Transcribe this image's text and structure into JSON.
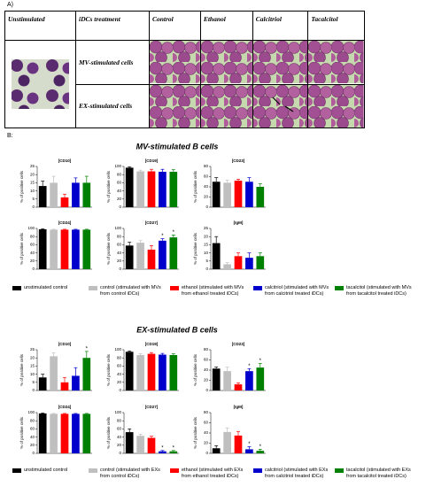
{
  "panel_a": {
    "label": "A)",
    "header": [
      "Unstimulated",
      "iDCs treatment",
      "Control",
      "Ethanol",
      "Calcitriol",
      "Tacalcitol"
    ],
    "rows": [
      "MV-stimulated cells",
      "EX-stimulated cells"
    ]
  },
  "panel_b_label": "B:",
  "sections": [
    {
      "title": "MV-stimulated B cells",
      "legend": [
        {
          "label": "unstimulated control",
          "color": "#000000"
        },
        {
          "label": "control (stimulated with MVs from control iDCs)",
          "color": "#bfbfbf"
        },
        {
          "label": "ethanol (stimulated with MVs from ethanol treated iDCs)",
          "color": "#ff0000"
        },
        {
          "label": "calcitriol (stimulated with MVs from calcitriol treated iDCs)",
          "color": "#0000cc"
        },
        {
          "label": "tacalcitol (stimulated with MVs from tacalcitol treated iDCs)",
          "color": "#008000"
        }
      ]
    },
    {
      "title": "EX-stimulated B cells",
      "legend": [
        {
          "label": "unstimulated control",
          "color": "#000000"
        },
        {
          "label": "control (stimulated with EXs from control iDCs)",
          "color": "#bfbfbf"
        },
        {
          "label": "ethanol (stimulated with EXs from ethanol treated iDCs)",
          "color": "#ff0000"
        },
        {
          "label": "calcitriol (stimulated with EXs from calcitriol treated iDCs)",
          "color": "#0000cc"
        },
        {
          "label": "tacalcitol (stimulated with EXs from tacalcitol treated iDCs)",
          "color": "#008000"
        }
      ]
    }
  ],
  "chart_data": [
    {
      "type": "bar",
      "title": "[CD10]",
      "ylabel": "% of positive cells",
      "values": [
        13,
        15,
        6,
        15,
        15
      ],
      "errors": [
        3,
        4,
        2,
        3,
        4
      ],
      "colors": [
        "#000000",
        "#bfbfbf",
        "#ff0000",
        "#0000cc",
        "#008000"
      ],
      "annotations": [
        null,
        null,
        null,
        null,
        null
      ],
      "ylim": [
        0,
        25
      ],
      "yticks": [
        0,
        5,
        10,
        15,
        20,
        25
      ]
    },
    {
      "type": "bar",
      "title": "[CD19]",
      "ylabel": "% of positive cells",
      "values": [
        97,
        88,
        88,
        87,
        87
      ],
      "errors": [
        2,
        3,
        5,
        6,
        5
      ],
      "colors": [
        "#000000",
        "#bfbfbf",
        "#ff0000",
        "#0000cc",
        "#008000"
      ],
      "annotations": [
        null,
        null,
        null,
        null,
        null
      ],
      "ylim": [
        0,
        100
      ],
      "yticks": [
        0,
        20,
        40,
        60,
        80,
        100
      ]
    },
    {
      "type": "bar",
      "title": "[CD23]",
      "ylabel": "% of positive cells",
      "values": [
        50,
        48,
        52,
        50,
        40
      ],
      "errors": [
        8,
        5,
        3,
        8,
        6
      ],
      "colors": [
        "#000000",
        "#bfbfbf",
        "#ff0000",
        "#0000cc",
        "#008000"
      ],
      "annotations": [
        null,
        null,
        null,
        null,
        null
      ],
      "ylim": [
        0,
        80
      ],
      "yticks": [
        0,
        20,
        40,
        60,
        80
      ]
    },
    {
      "type": "bar",
      "title": "[CD24]",
      "ylabel": "% of positive cells",
      "values": [
        98,
        97,
        97,
        97,
        97
      ],
      "errors": [
        1,
        1,
        1,
        1,
        1
      ],
      "colors": [
        "#000000",
        "#bfbfbf",
        "#ff0000",
        "#0000cc",
        "#008000"
      ],
      "annotations": [
        null,
        null,
        null,
        null,
        null
      ],
      "ylim": [
        0,
        100
      ],
      "yticks": [
        0,
        20,
        40,
        60,
        80,
        100
      ]
    },
    {
      "type": "bar",
      "title": "[CD27]",
      "ylabel": "% of positive cells",
      "values": [
        58,
        65,
        48,
        70,
        78
      ],
      "errors": [
        8,
        5,
        10,
        5,
        6
      ],
      "colors": [
        "#000000",
        "#bfbfbf",
        "#ff0000",
        "#0000cc",
        "#008000"
      ],
      "annotations": [
        null,
        null,
        null,
        "*",
        "*"
      ],
      "ylim": [
        0,
        100
      ],
      "yticks": [
        0,
        20,
        40,
        60,
        80,
        100
      ]
    },
    {
      "type": "bar",
      "title": "[IgM]",
      "ylabel": "% of positive cells",
      "values": [
        16,
        3,
        8,
        7,
        8
      ],
      "errors": [
        4,
        1,
        2,
        3,
        2
      ],
      "colors": [
        "#000000",
        "#bfbfbf",
        "#ff0000",
        "#0000cc",
        "#008000"
      ],
      "annotations": [
        null,
        null,
        null,
        null,
        null
      ],
      "ylim": [
        0,
        25
      ],
      "yticks": [
        0,
        5,
        10,
        15,
        20,
        25
      ]
    },
    {
      "type": "bar",
      "title": "[CD10]",
      "ylabel": "% of positive cells",
      "values": [
        8,
        21,
        5,
        9,
        20
      ],
      "errors": [
        2,
        2,
        3,
        5,
        4
      ],
      "colors": [
        "#000000",
        "#bfbfbf",
        "#ff0000",
        "#0000cc",
        "#008000"
      ],
      "annotations": [
        null,
        null,
        null,
        null,
        "*"
      ],
      "ylim": [
        0,
        25
      ],
      "yticks": [
        0,
        5,
        10,
        15,
        20,
        25
      ]
    },
    {
      "type": "bar",
      "title": "[CD19]",
      "ylabel": "% of positive cells",
      "values": [
        95,
        87,
        90,
        88,
        87
      ],
      "errors": [
        2,
        3,
        3,
        3,
        3
      ],
      "colors": [
        "#000000",
        "#bfbfbf",
        "#ff0000",
        "#0000cc",
        "#008000"
      ],
      "annotations": [
        null,
        null,
        null,
        null,
        null
      ],
      "ylim": [
        0,
        100
      ],
      "yticks": [
        0,
        20,
        40,
        60,
        80,
        100
      ]
    },
    {
      "type": "bar",
      "title": "[CD23]",
      "ylabel": "% of positive cells",
      "values": [
        43,
        38,
        12,
        38,
        45
      ],
      "errors": [
        3,
        8,
        3,
        5,
        8
      ],
      "colors": [
        "#000000",
        "#bfbfbf",
        "#ff0000",
        "#0000cc",
        "#008000"
      ],
      "annotations": [
        null,
        null,
        null,
        "*",
        "*"
      ],
      "ylim": [
        0,
        80
      ],
      "yticks": [
        0,
        20,
        40,
        60,
        80
      ]
    },
    {
      "type": "bar",
      "title": "[CD24]",
      "ylabel": "% of positive cells",
      "values": [
        98,
        97,
        97,
        97,
        97
      ],
      "errors": [
        1,
        1,
        1,
        1,
        1
      ],
      "colors": [
        "#000000",
        "#bfbfbf",
        "#ff0000",
        "#0000cc",
        "#008000"
      ],
      "annotations": [
        null,
        null,
        null,
        null,
        null
      ],
      "ylim": [
        0,
        100
      ],
      "yticks": [
        0,
        20,
        40,
        60,
        80,
        100
      ]
    },
    {
      "type": "bar",
      "title": "[CD27]",
      "ylabel": "% of positive cells",
      "values": [
        52,
        43,
        38,
        5,
        5
      ],
      "errors": [
        8,
        4,
        4,
        2,
        2
      ],
      "colors": [
        "#000000",
        "#bfbfbf",
        "#ff0000",
        "#0000cc",
        "#008000"
      ],
      "annotations": [
        null,
        null,
        null,
        "*",
        "*"
      ],
      "ylim": [
        0,
        100
      ],
      "yticks": [
        0,
        20,
        40,
        60,
        80,
        100
      ]
    },
    {
      "type": "bar",
      "title": "[IgM]",
      "ylabel": "% of positive cells",
      "values": [
        10,
        42,
        35,
        8,
        5
      ],
      "errors": [
        5,
        8,
        8,
        5,
        3
      ],
      "colors": [
        "#000000",
        "#bfbfbf",
        "#ff0000",
        "#0000cc",
        "#008000"
      ],
      "annotations": [
        null,
        null,
        null,
        "*",
        "*"
      ],
      "ylim": [
        0,
        80
      ],
      "yticks": [
        0,
        20,
        40,
        60,
        80
      ]
    }
  ]
}
